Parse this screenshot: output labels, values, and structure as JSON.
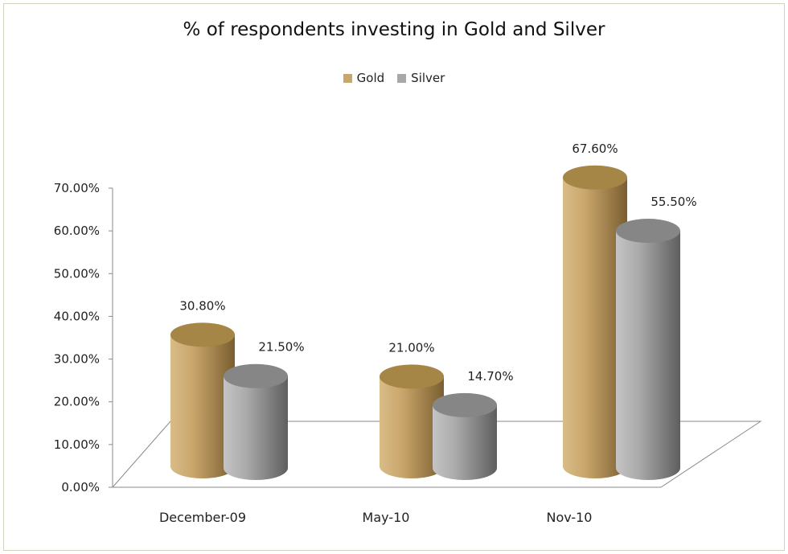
{
  "chart_data": {
    "type": "bar",
    "title": "% of respondents investing in Gold and Silver",
    "categories": [
      "December-09",
      "May-10",
      "Nov-10"
    ],
    "series": [
      {
        "name": "Gold",
        "values": [
          30.8,
          21.0,
          67.6
        ],
        "labels": [
          "30.80%",
          "21.00%",
          "67.60%"
        ],
        "color": "#c9a66b"
      },
      {
        "name": "Silver",
        "values": [
          21.5,
          14.7,
          55.5
        ],
        "labels": [
          "21.50%",
          "14.70%",
          "55.50%"
        ],
        "color": "#a8a8a8"
      }
    ],
    "ylim": [
      0,
      70
    ],
    "yticks": [
      "0.00%",
      "10.00%",
      "20.00%",
      "30.00%",
      "40.00%",
      "50.00%",
      "60.00%",
      "70.00%"
    ],
    "legend_position": "top",
    "xlabel": "",
    "ylabel": "",
    "style": "3d-cylinder"
  }
}
